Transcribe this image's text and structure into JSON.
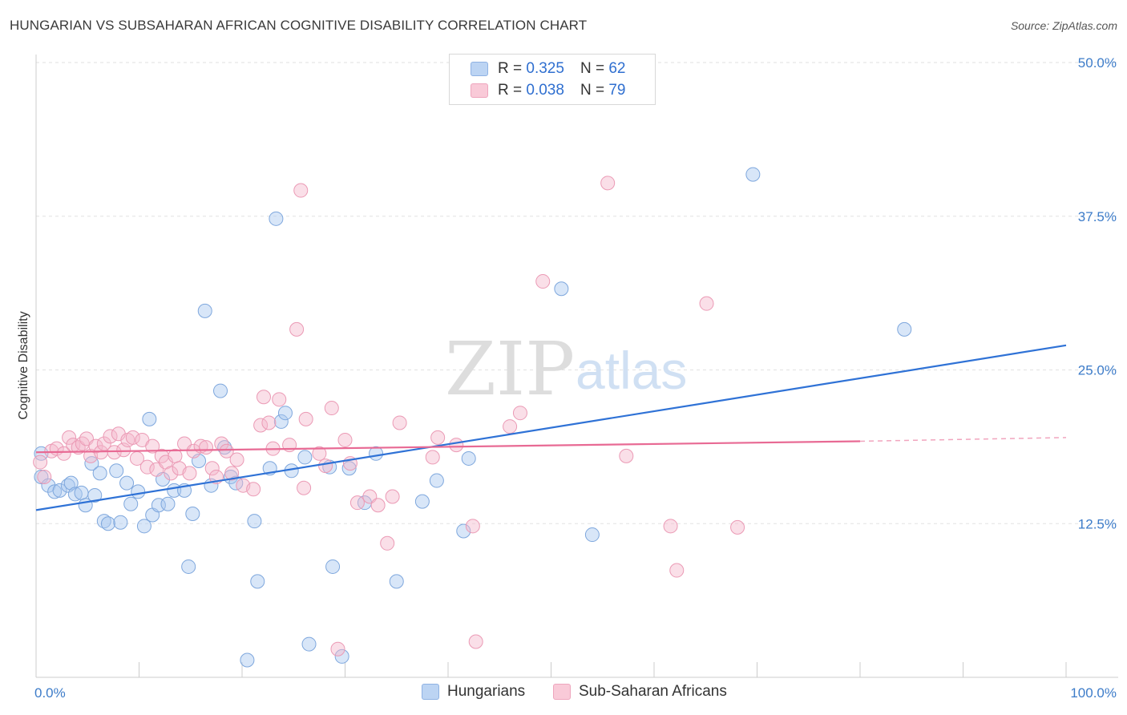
{
  "title": "HUNGARIAN VS SUBSAHARAN AFRICAN COGNITIVE DISABILITY CORRELATION CHART",
  "source": "Source: ZipAtlas.com",
  "watermark": {
    "zip": "ZIP",
    "atlas": "atlas"
  },
  "legend": {
    "rows": [
      {
        "r_label": "R =",
        "r_value": "0.325",
        "n_label": "N =",
        "n_value": "62",
        "color": "#a9c7ef"
      },
      {
        "r_label": "R =",
        "r_value": "0.038",
        "n_label": "N =",
        "n_value": "79",
        "color": "#f5b8cb"
      }
    ]
  },
  "bottom_legend": [
    {
      "label": "Hungarians",
      "color": "#a9c7ef"
    },
    {
      "label": "Sub-Saharan Africans",
      "color": "#f5b8cb"
    }
  ],
  "chart_data": {
    "type": "scatter",
    "title": "HUNGARIAN VS SUBSAHARAN AFRICAN COGNITIVE DISABILITY CORRELATION CHART",
    "xlabel": "",
    "ylabel": "Cognitive Disability",
    "xlim": [
      0,
      100
    ],
    "ylim": [
      0,
      50
    ],
    "x_tick_labels": [
      "0.0%",
      "100.0%"
    ],
    "y_ticks": [
      12.5,
      25.0,
      37.5,
      50.0
    ],
    "y_tick_labels": [
      "12.5%",
      "25.0%",
      "37.5%",
      "50.0%"
    ],
    "grid": true,
    "legend_position": "top-center",
    "series": [
      {
        "name": "Hungarians",
        "color": "#a9c7ef",
        "line_color": "#2f72d6",
        "trend": {
          "x": [
            0,
            100
          ],
          "y": [
            13.6,
            27.0
          ],
          "dashed_from": null
        },
        "points": [
          [
            0.5,
            18.2
          ],
          [
            0.5,
            16.3
          ],
          [
            1.2,
            15.6
          ],
          [
            1.8,
            15.1
          ],
          [
            2.3,
            15.2
          ],
          [
            3.1,
            15.6
          ],
          [
            3.4,
            15.8
          ],
          [
            3.8,
            14.9
          ],
          [
            4.4,
            15.0
          ],
          [
            4.8,
            14.0
          ],
          [
            5.4,
            17.4
          ],
          [
            5.7,
            14.8
          ],
          [
            6.2,
            16.6
          ],
          [
            6.6,
            12.7
          ],
          [
            7.0,
            12.5
          ],
          [
            7.8,
            16.8
          ],
          [
            8.2,
            12.6
          ],
          [
            8.8,
            15.8
          ],
          [
            9.2,
            14.1
          ],
          [
            9.9,
            15.1
          ],
          [
            10.5,
            12.3
          ],
          [
            11.0,
            21.0
          ],
          [
            11.3,
            13.2
          ],
          [
            11.9,
            14.0
          ],
          [
            12.3,
            16.1
          ],
          [
            12.8,
            14.1
          ],
          [
            13.4,
            15.2
          ],
          [
            14.4,
            15.2
          ],
          [
            14.8,
            9.0
          ],
          [
            15.2,
            13.3
          ],
          [
            15.8,
            17.6
          ],
          [
            16.4,
            29.8
          ],
          [
            17.0,
            15.6
          ],
          [
            17.9,
            23.3
          ],
          [
            18.3,
            18.7
          ],
          [
            18.9,
            16.3
          ],
          [
            19.4,
            15.8
          ],
          [
            20.5,
            1.4
          ],
          [
            21.2,
            12.7
          ],
          [
            21.5,
            7.8
          ],
          [
            22.7,
            17.0
          ],
          [
            23.3,
            37.3
          ],
          [
            23.8,
            20.8
          ],
          [
            24.2,
            21.5
          ],
          [
            24.8,
            16.8
          ],
          [
            26.1,
            17.9
          ],
          [
            26.5,
            2.7
          ],
          [
            28.5,
            17.1
          ],
          [
            28.8,
            9.0
          ],
          [
            29.7,
            1.7
          ],
          [
            30.4,
            17.0
          ],
          [
            31.9,
            14.2
          ],
          [
            33.0,
            18.2
          ],
          [
            35.0,
            7.8
          ],
          [
            37.5,
            14.3
          ],
          [
            38.9,
            16.0
          ],
          [
            41.5,
            11.9
          ],
          [
            42.0,
            17.8
          ],
          [
            51.0,
            31.6
          ],
          [
            54.0,
            11.6
          ],
          [
            69.6,
            40.9
          ],
          [
            84.3,
            28.3
          ]
        ]
      },
      {
        "name": "Sub-Saharan Africans",
        "color": "#f5b8cb",
        "line_color": "#e86a94",
        "trend": {
          "x": [
            0,
            80
          ],
          "y": [
            18.3,
            19.2
          ],
          "dashed_from": 80,
          "dashed_to": [
            100,
            19.5
          ]
        },
        "points": [
          [
            0.4,
            17.5
          ],
          [
            0.8,
            16.3
          ],
          [
            1.5,
            18.4
          ],
          [
            2.0,
            18.6
          ],
          [
            2.7,
            18.2
          ],
          [
            3.2,
            19.5
          ],
          [
            3.6,
            18.9
          ],
          [
            4.1,
            18.7
          ],
          [
            4.5,
            19.0
          ],
          [
            4.9,
            19.4
          ],
          [
            5.3,
            18.0
          ],
          [
            5.8,
            18.8
          ],
          [
            6.3,
            18.3
          ],
          [
            6.6,
            19.0
          ],
          [
            7.2,
            19.6
          ],
          [
            7.6,
            18.3
          ],
          [
            8.0,
            19.8
          ],
          [
            8.5,
            18.5
          ],
          [
            8.9,
            19.3
          ],
          [
            9.4,
            19.5
          ],
          [
            9.8,
            17.8
          ],
          [
            10.3,
            19.3
          ],
          [
            10.8,
            17.1
          ],
          [
            11.3,
            18.8
          ],
          [
            11.7,
            16.9
          ],
          [
            12.2,
            18.0
          ],
          [
            12.6,
            17.5
          ],
          [
            13.1,
            16.6
          ],
          [
            13.5,
            18.0
          ],
          [
            13.9,
            17.0
          ],
          [
            14.4,
            19.0
          ],
          [
            14.9,
            16.6
          ],
          [
            15.3,
            18.4
          ],
          [
            16.0,
            18.8
          ],
          [
            16.5,
            18.7
          ],
          [
            17.1,
            17.0
          ],
          [
            17.5,
            16.3
          ],
          [
            18.0,
            19.0
          ],
          [
            18.5,
            18.4
          ],
          [
            19.0,
            16.6
          ],
          [
            19.5,
            17.7
          ],
          [
            20.1,
            15.6
          ],
          [
            21.1,
            15.3
          ],
          [
            21.8,
            20.5
          ],
          [
            22.1,
            22.8
          ],
          [
            22.6,
            20.7
          ],
          [
            23.0,
            18.6
          ],
          [
            23.6,
            22.6
          ],
          [
            24.6,
            18.9
          ],
          [
            25.3,
            28.3
          ],
          [
            25.7,
            39.6
          ],
          [
            26.0,
            15.4
          ],
          [
            26.2,
            21.0
          ],
          [
            27.5,
            18.2
          ],
          [
            28.1,
            17.2
          ],
          [
            28.7,
            21.9
          ],
          [
            29.3,
            2.3
          ],
          [
            30.0,
            19.3
          ],
          [
            30.5,
            17.4
          ],
          [
            31.2,
            14.2
          ],
          [
            32.4,
            14.7
          ],
          [
            33.2,
            14.0
          ],
          [
            34.1,
            10.9
          ],
          [
            34.6,
            14.7
          ],
          [
            35.3,
            20.7
          ],
          [
            38.5,
            17.9
          ],
          [
            39.0,
            19.5
          ],
          [
            40.8,
            18.9
          ],
          [
            42.4,
            12.3
          ],
          [
            42.7,
            2.9
          ],
          [
            46.0,
            20.4
          ],
          [
            47.0,
            21.5
          ],
          [
            49.2,
            32.2
          ],
          [
            55.5,
            40.2
          ],
          [
            57.3,
            18.0
          ],
          [
            61.6,
            12.3
          ],
          [
            62.2,
            8.7
          ],
          [
            65.1,
            30.4
          ],
          [
            68.1,
            12.2
          ]
        ]
      }
    ]
  }
}
